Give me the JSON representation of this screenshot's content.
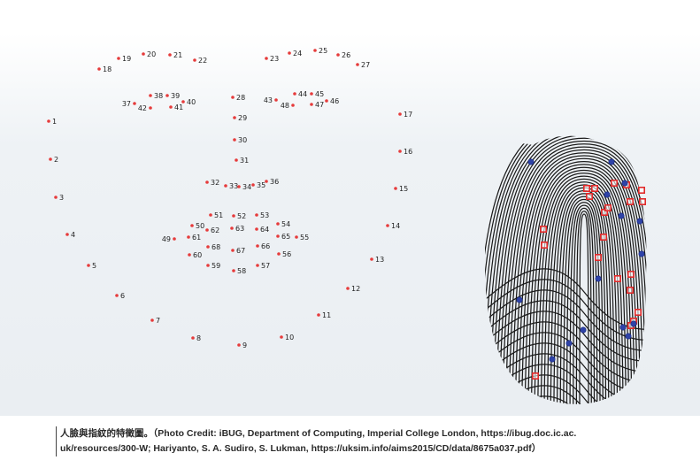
{
  "figure": {
    "face_landmarks": [
      {
        "n": "1"
      },
      {
        "n": "2"
      },
      {
        "n": "3"
      },
      {
        "n": "4"
      },
      {
        "n": "5"
      },
      {
        "n": "6"
      },
      {
        "n": "7"
      },
      {
        "n": "8"
      },
      {
        "n": "9"
      },
      {
        "n": "10"
      },
      {
        "n": "11"
      },
      {
        "n": "12"
      },
      {
        "n": "13"
      },
      {
        "n": "14"
      },
      {
        "n": "15"
      },
      {
        "n": "16"
      },
      {
        "n": "17"
      },
      {
        "n": "18"
      },
      {
        "n": "19"
      },
      {
        "n": "20"
      },
      {
        "n": "21"
      },
      {
        "n": "22"
      },
      {
        "n": "23"
      },
      {
        "n": "24"
      },
      {
        "n": "25"
      },
      {
        "n": "26"
      },
      {
        "n": "27"
      },
      {
        "n": "28"
      },
      {
        "n": "29"
      },
      {
        "n": "30"
      },
      {
        "n": "31"
      },
      {
        "n": "32"
      },
      {
        "n": "33"
      },
      {
        "n": "34"
      },
      {
        "n": "35"
      },
      {
        "n": "36"
      },
      {
        "n": "37"
      },
      {
        "n": "38"
      },
      {
        "n": "39"
      },
      {
        "n": "40"
      },
      {
        "n": "41"
      },
      {
        "n": "42"
      },
      {
        "n": "43"
      },
      {
        "n": "44"
      },
      {
        "n": "45"
      },
      {
        "n": "46"
      },
      {
        "n": "47"
      },
      {
        "n": "48"
      },
      {
        "n": "49"
      },
      {
        "n": "50"
      },
      {
        "n": "51"
      },
      {
        "n": "52"
      },
      {
        "n": "53"
      },
      {
        "n": "54"
      },
      {
        "n": "55"
      },
      {
        "n": "56"
      },
      {
        "n": "57"
      },
      {
        "n": "58"
      },
      {
        "n": "59"
      },
      {
        "n": "60"
      },
      {
        "n": "61"
      },
      {
        "n": "62"
      },
      {
        "n": "63"
      },
      {
        "n": "64"
      },
      {
        "n": "65"
      },
      {
        "n": "66"
      },
      {
        "n": "67"
      },
      {
        "n": "68"
      }
    ],
    "landmark_color": "#e63b3b",
    "fingerprint": {
      "ridge_color": "#1b1b1b",
      "minutiae_colors": {
        "square": "#e02a2a",
        "circle": "#2f43a8"
      }
    }
  },
  "caption": {
    "line1": "人臉與指紋的特徵圖。（Photo Credit: iBUG, Department of Computing, Imperial College London, https://ibug.doc.ic.ac.",
    "line2": "uk/resources/300-W; Hariyanto, S. A. Sudiro, S. Lukman, https://uksim.info/aims2015/CD/data/8675a037.pdf）"
  }
}
